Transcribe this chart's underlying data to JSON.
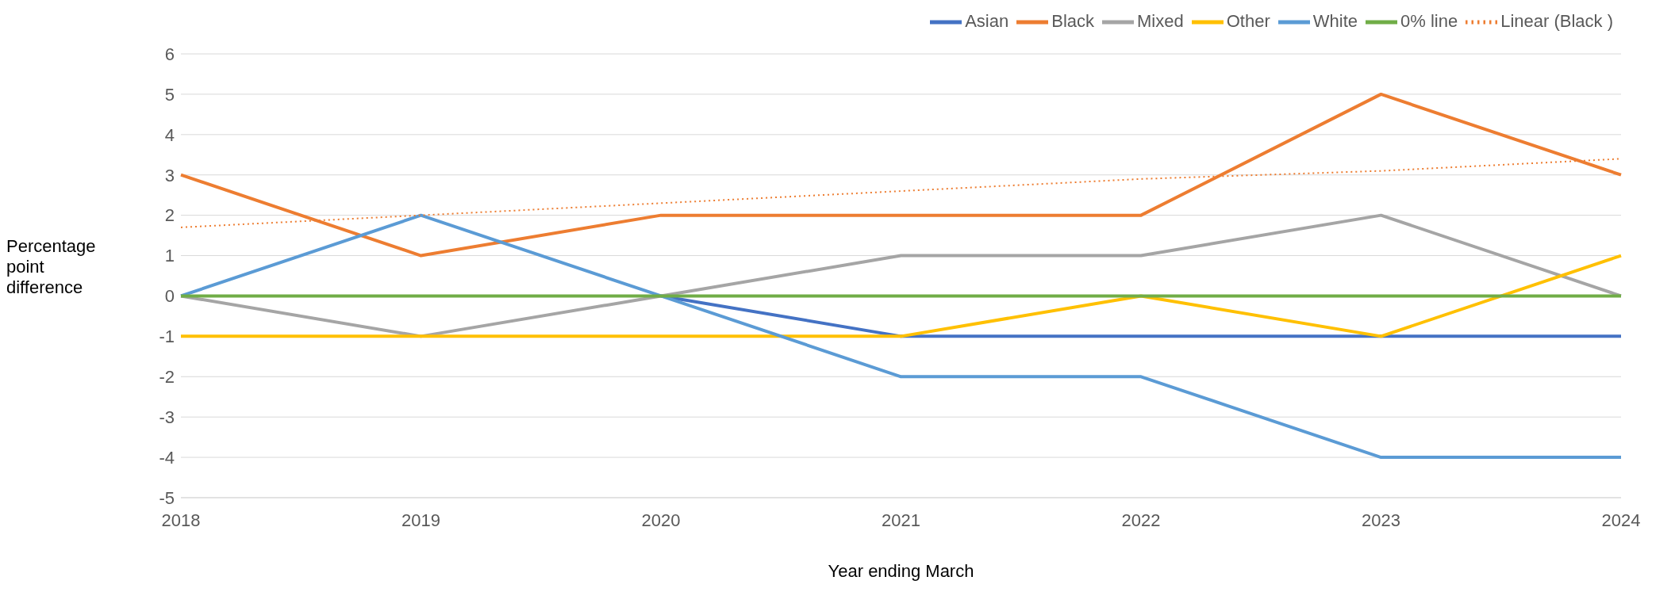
{
  "chart_data": {
    "type": "line",
    "xlabel": "Year ending March",
    "ylabel": "Percentage point difference",
    "categories": [
      "2018",
      "2019",
      "2020",
      "2021",
      "2022",
      "2023",
      "2024"
    ],
    "series": [
      {
        "name": "Asian",
        "color": "#4472c4",
        "values": [
          null,
          null,
          0,
          -1,
          -1,
          -1,
          -1
        ]
      },
      {
        "name": "Black",
        "color": "#ed7d31",
        "values": [
          3,
          1,
          2,
          2,
          2,
          5,
          3
        ]
      },
      {
        "name": "Mixed",
        "color": "#a5a5a5",
        "values": [
          0,
          -1,
          0,
          1,
          1,
          2,
          0
        ]
      },
      {
        "name": "Other",
        "color": "#ffc000",
        "values": [
          -1,
          -1,
          -1,
          -1,
          0,
          -1,
          1
        ]
      },
      {
        "name": "White",
        "color": "#5b9bd5",
        "values": [
          0,
          2,
          0,
          -2,
          -2,
          -4,
          -4
        ]
      },
      {
        "name": "0% line",
        "color": "#70ad47",
        "values": [
          0,
          0,
          0,
          0,
          0,
          0,
          0
        ]
      },
      {
        "name": "Linear (Black )",
        "color": "#ed7d31",
        "line_style": "dotted",
        "values": [
          1.7,
          2.0,
          2.3,
          2.6,
          2.9,
          3.1,
          3.4
        ]
      }
    ],
    "ylim": [
      -5,
      6
    ],
    "yticks": [
      -5,
      -4,
      -3,
      -2,
      -1,
      0,
      1,
      2,
      3,
      4,
      5,
      6
    ],
    "grid": "y",
    "legend": "top",
    "marker": "none",
    "line_style": "solid"
  }
}
